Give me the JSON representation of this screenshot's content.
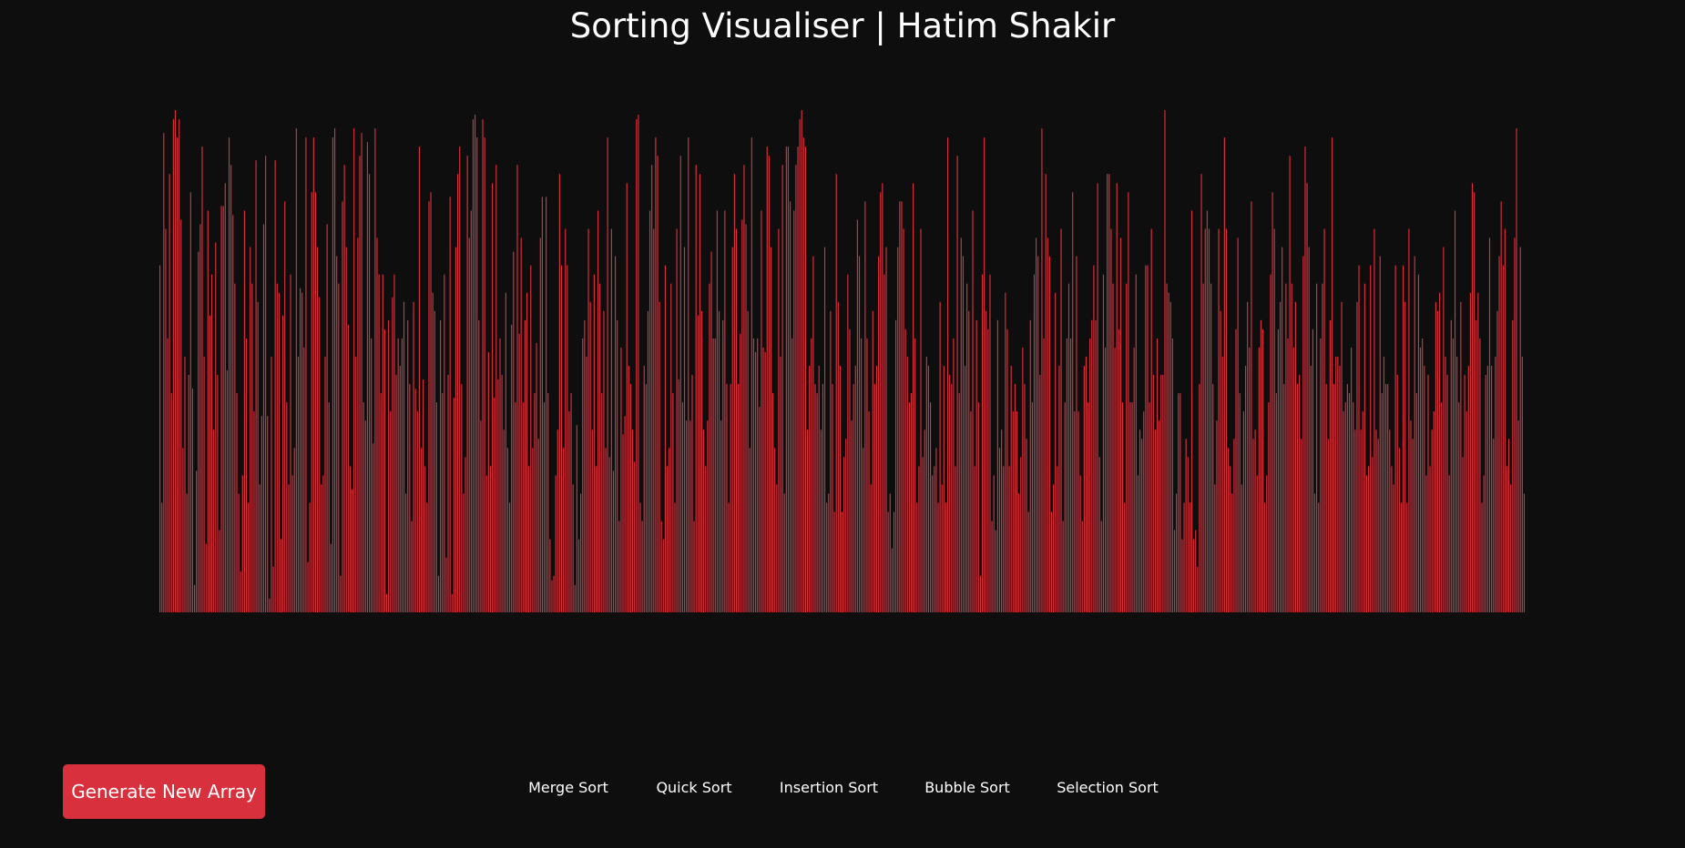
{
  "header": {
    "title": "Sorting Visualiser | Hatim Shakir"
  },
  "colors": {
    "background": "#0d0e0d",
    "bar": "#d9303d",
    "button": "#d9303d",
    "text": "#ffffff"
  },
  "controls": {
    "generate_label": "Generate New Array",
    "sort_buttons": [
      "Merge Sort",
      "Quick Sort",
      "Insertion Sort",
      "Bubble Sort",
      "Selection Sort"
    ]
  },
  "array": {
    "max_value": 550,
    "values": [
      380,
      120,
      525,
      420,
      300,
      480,
      240,
      540,
      550,
      520,
      540,
      430,
      180,
      280,
      130,
      260,
      460,
      245,
      30,
      155,
      395,
      425,
      510,
      280,
      75,
      440,
      325,
      370,
      200,
      405,
      260,
      90,
      445,
      445,
      470,
      265,
      520,
      490,
      435,
      360,
      240,
      130,
      45,
      150,
      440,
      300,
      120,
      400,
      360,
      220,
      495,
      340,
      140,
      215,
      425,
      500,
      215,
      15,
      280,
      50,
      495,
      360,
      350,
      80,
      325,
      450,
      230,
      140,
      370,
      150,
      180,
      530,
      280,
      355,
      350,
      290,
      520,
      55,
      120,
      460,
      520,
      460,
      400,
      345,
      140,
      150,
      280,
      425,
      230,
      75,
      520,
      530,
      390,
      360,
      40,
      450,
      490,
      400,
      315,
      160,
      135,
      530,
      280,
      410,
      500,
      525,
      230,
      210,
      515,
      480,
      300,
      185,
      530,
      410,
      370,
      240,
      370,
      310,
      20,
      320,
      220,
      345,
      370,
      260,
      300,
      270,
      300,
      340,
      130,
      320,
      250,
      100,
      340,
      245,
      220,
      510,
      180,
      255,
      160,
      120,
      450,
      460,
      350,
      330,
      230,
      40,
      320,
      240,
      370,
      60,
      260,
      455,
      20,
      235,
      400,
      480,
      510,
      250,
      130,
      170,
      500,
      410,
      440,
      540,
      545,
      520,
      320,
      210,
      540,
      520,
      150,
      285,
      160,
      470,
      235,
      490,
      255,
      300,
      260,
      200,
      350,
      180,
      120,
      315,
      395,
      230,
      490,
      305,
      410,
      230,
      320,
      350,
      160,
      380,
      180,
      240,
      295,
      190,
      410,
      455,
      230,
      455,
      240,
      80,
      35,
      40,
      150,
      200,
      480,
      380,
      180,
      420,
      380,
      220,
      240,
      140,
      30,
      205,
      80,
      130,
      300,
      320,
      280,
      420,
      340,
      200,
      370,
      160,
      440,
      360,
      240,
      330,
      180,
      520,
      170,
      420,
      155,
      390,
      320,
      100,
      290,
      195,
      215,
      470,
      270,
      250,
      200,
      165,
      540,
      545,
      120,
      100,
      270,
      250,
      330,
      440,
      490,
      420,
      520,
      500,
      340,
      100,
      80,
      380,
      160,
      180,
      360,
      240,
      120,
      420,
      255,
      500,
      230,
      400,
      210,
      520,
      210,
      260,
      100,
      490,
      325,
      480,
      330,
      200,
      160,
      210,
      360,
      395,
      300,
      300,
      440,
      330,
      210,
      320,
      440,
      250,
      120,
      250,
      400,
      480,
      420,
      250,
      305,
      430,
      490,
      425,
      330,
      180,
      520,
      300,
      285,
      300,
      225,
      440,
      290,
      285,
      510,
      500,
      400,
      240,
      180,
      140,
      420,
      280,
      490,
      130,
      510,
      510,
      450,
      300,
      440,
      490,
      510,
      540,
      550,
      520,
      510,
      200,
      270,
      300,
      390,
      250,
      240,
      270,
      200,
      250,
      400,
      120,
      130,
      330,
      250,
      110,
      480,
      340,
      270,
      110,
      170,
      190,
      370,
      310,
      210,
      250,
      270,
      430,
      390,
      300,
      180,
      450,
      300,
      220,
      140,
      330,
      250,
      270,
      390,
      460,
      470,
      370,
      400,
      110,
      130,
      70,
      110,
      320,
      400,
      450,
      450,
      420,
      310,
      280,
      230,
      240,
      470,
      300,
      120,
      160,
      420,
      170,
      200,
      280,
      270,
      230,
      150,
      160,
      180,
      120,
      340,
      140,
      270,
      120,
      520,
      260,
      250,
      300,
      160,
      500,
      240,
      410,
      390,
      270,
      360,
      330,
      220,
      440,
      160,
      320,
      230,
      40,
      370,
      520,
      330,
      310,
      370,
      100,
      150,
      90,
      320,
      180,
      200,
      160,
      350,
      310,
      160,
      270,
      220,
      250,
      220,
      130,
      170,
      290,
      250,
      190,
      110,
      320,
      230,
      370,
      410,
      390,
      260,
      530,
      300,
      480,
      410,
      390,
      110,
      140,
      350,
      160,
      270,
      420,
      100,
      230,
      300,
      360,
      300,
      460,
      220,
      390,
      220,
      150,
      100,
      270,
      280,
      230,
      300,
      320,
      380,
      320,
      470,
      170,
      100,
      370,
      290,
      480,
      480,
      420,
      360,
      290,
      470,
      310,
      410,
      230,
      120,
      360,
      460,
      230,
      230,
      290,
      370,
      150,
      200,
      190,
      220,
      380,
      380,
      230,
      420,
      260,
      200,
      300,
      210,
      260,
      260,
      550,
      360,
      350,
      340,
      300,
      90,
      130,
      240,
      240,
      80,
      120,
      190,
      170,
      120,
      440,
      80,
      90,
      50,
      250,
      480,
      360,
      420,
      440,
      420,
      360,
      250,
      140,
      210,
      420,
      330,
      280,
      520,
      420,
      180,
      160,
      130,
      190,
      310,
      410,
      240,
      140,
      220,
      270,
      340,
      290,
      450,
      190,
      200,
      150,
      290,
      320,
      310,
      120,
      150,
      230,
      370,
      460,
      420,
      240,
      310,
      340,
      400,
      250,
      360,
      300,
      500,
      360,
      290,
      340,
      250,
      260,
      190,
      390,
      510,
      470,
      400,
      270,
      310,
      130,
      360,
      120,
      300,
      360,
      420,
      250,
      190,
      320,
      520,
      250,
      280,
      280,
      270,
      340,
      220,
      230,
      250,
      240,
      290,
      230,
      200,
      340,
      380,
      200,
      220,
      360,
      150,
      160,
      380,
      170,
      420,
      200,
      190,
      390,
      240,
      280,
      250,
      250,
      200,
      160,
      140,
      380,
      260,
      180,
      120,
      380,
      340,
      120,
      420,
      210,
      190,
      390,
      240,
      370,
      290,
      300,
      270,
      150,
      260,
      160,
      200,
      220,
      340,
      330,
      350,
      230,
      400,
      280,
      260,
      150,
      320,
      300,
      440,
      280,
      230,
      340,
      170,
      260,
      220,
      270,
      350,
      470,
      460,
      320,
      350,
      300,
      120,
      150,
      260,
      270,
      410,
      270,
      190,
      280,
      330,
      390,
      450,
      380,
      420,
      160,
      190,
      140,
      320,
      410,
      530,
      210,
      400,
      280,
      130
    ]
  }
}
